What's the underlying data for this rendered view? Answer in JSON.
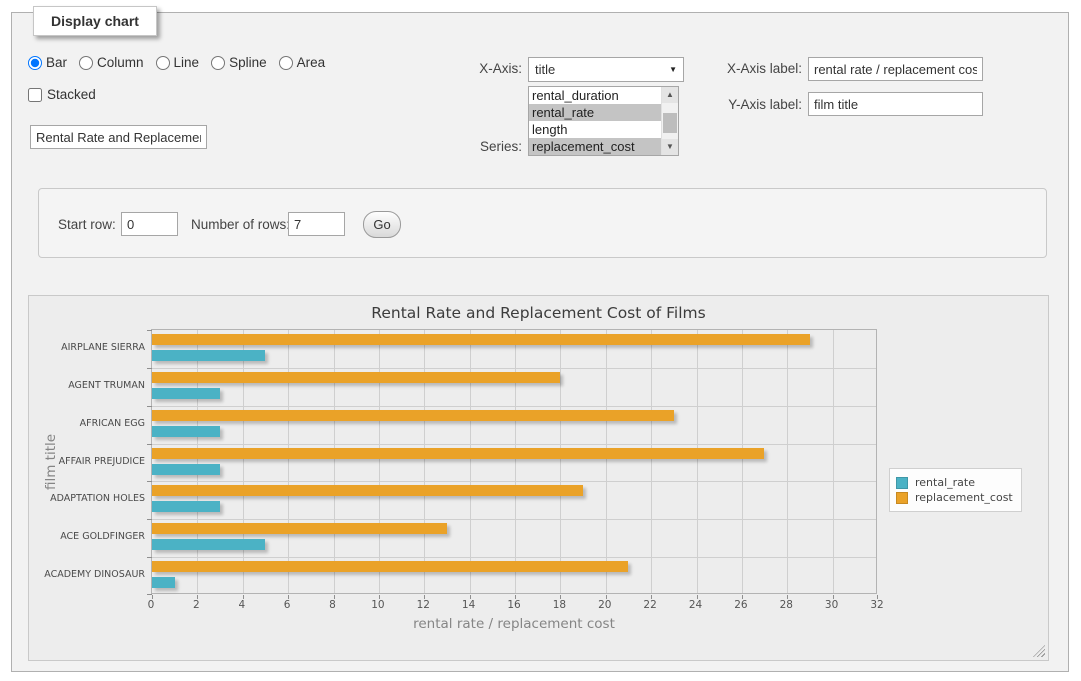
{
  "panel": {
    "legend": "Display chart"
  },
  "chart_type": {
    "options": [
      {
        "label": "Bar",
        "selected": true
      },
      {
        "label": "Column",
        "selected": false
      },
      {
        "label": "Line",
        "selected": false
      },
      {
        "label": "Spline",
        "selected": false
      },
      {
        "label": "Area",
        "selected": false
      }
    ]
  },
  "stacked": {
    "label": "Stacked",
    "checked": false
  },
  "chart_title_input": {
    "value": "Rental Rate and Replacement Cost of Films"
  },
  "x_axis_select": {
    "label": "X-Axis:",
    "selected_value": "title"
  },
  "series_select": {
    "label": "Series:",
    "options": [
      {
        "label": "rental_duration",
        "selected": false
      },
      {
        "label": "rental_rate",
        "selected": true
      },
      {
        "label": "length",
        "selected": false
      },
      {
        "label": "replacement_cost",
        "selected": true
      }
    ]
  },
  "x_axis_label_field": {
    "label": "X-Axis label:",
    "value": "rental rate / replacement cost"
  },
  "y_axis_label_field": {
    "label": "Y-Axis label:",
    "value": "film title"
  },
  "row_controls": {
    "start_row_label": "Start row:",
    "start_row_value": "0",
    "num_rows_label": "Number of rows:",
    "num_rows_value": "7",
    "go_label": "Go"
  },
  "chart_data": {
    "type": "bar",
    "orientation": "horizontal",
    "title": "Rental Rate and Replacement Cost of Films",
    "xlabel": "rental rate / replacement cost",
    "ylabel": "film title",
    "categories": [
      "AIRPLANE SIERRA",
      "AGENT TRUMAN",
      "AFRICAN EGG",
      "AFFAIR PREJUDICE",
      "ADAPTATION HOLES",
      "ACE GOLDFINGER",
      "ACADEMY DINOSAUR"
    ],
    "series": [
      {
        "name": "rental_rate",
        "color": "#4bb2c5",
        "values": [
          4.99,
          2.99,
          2.99,
          2.99,
          2.99,
          4.99,
          0.99
        ]
      },
      {
        "name": "replacement_cost",
        "color": "#eaa228",
        "values": [
          28.99,
          17.99,
          22.99,
          26.99,
          18.99,
          12.99,
          20.99
        ]
      }
    ],
    "xlim": [
      0,
      32
    ],
    "xtick_step": 2,
    "grid": true,
    "legend_position": "right",
    "grid_color": "#cfcfcf",
    "background": "#ededed"
  }
}
